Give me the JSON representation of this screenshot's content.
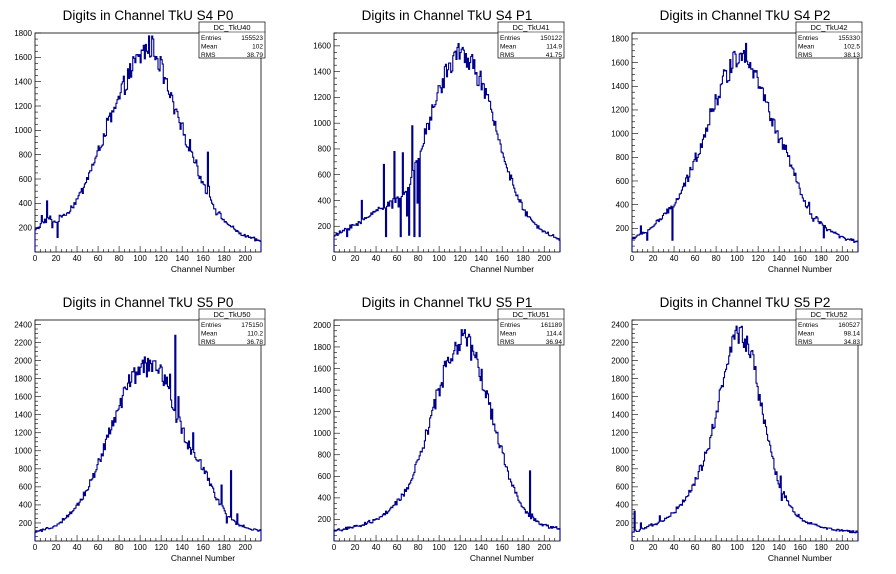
{
  "chart_data": [
    {
      "type": "histogram",
      "title": "Digits in Channel TkU S4 P0",
      "xlabel": "Channel Number",
      "ylabel": "",
      "xlim": [
        0,
        215
      ],
      "ylim": [
        0,
        1800
      ],
      "xticks": [
        0,
        20,
        40,
        60,
        80,
        100,
        120,
        140,
        160,
        180,
        200
      ],
      "yticks": [
        200,
        400,
        600,
        800,
        1000,
        1200,
        1400,
        1600,
        1800
      ],
      "stats": {
        "name": "DC_TkU40",
        "entries": "155523",
        "mean": "102",
        "rms": "38.79"
      },
      "anchors": [
        [
          0,
          180
        ],
        [
          8,
          240
        ],
        [
          14,
          280
        ],
        [
          20,
          240
        ],
        [
          26,
          300
        ],
        [
          32,
          330
        ],
        [
          36,
          380
        ],
        [
          40,
          430
        ],
        [
          46,
          520
        ],
        [
          52,
          660
        ],
        [
          58,
          760
        ],
        [
          64,
          920
        ],
        [
          70,
          1070
        ],
        [
          76,
          1160
        ],
        [
          82,
          1300
        ],
        [
          88,
          1430
        ],
        [
          94,
          1530
        ],
        [
          100,
          1600
        ],
        [
          106,
          1680
        ],
        [
          112,
          1690
        ],
        [
          118,
          1580
        ],
        [
          124,
          1400
        ],
        [
          130,
          1240
        ],
        [
          136,
          1090
        ],
        [
          142,
          960
        ],
        [
          148,
          860
        ],
        [
          154,
          700
        ],
        [
          160,
          560
        ],
        [
          166,
          470
        ],
        [
          172,
          340
        ],
        [
          180,
          260
        ],
        [
          190,
          180
        ],
        [
          200,
          130
        ],
        [
          210,
          100
        ],
        [
          215,
          90
        ]
      ],
      "spikes": [
        [
          6,
          300
        ],
        [
          11,
          420
        ],
        [
          16,
          200
        ],
        [
          21,
          120
        ],
        [
          164,
          820
        ],
        [
          165,
          540
        ]
      ],
      "line_color": "#00008b"
    },
    {
      "type": "histogram",
      "title": "Digits in Channel TkU S4 P1",
      "xlabel": "Channel Number",
      "ylabel": "",
      "xlim": [
        0,
        215
      ],
      "ylim": [
        0,
        1700
      ],
      "xticks": [
        0,
        20,
        40,
        60,
        80,
        100,
        120,
        140,
        160,
        180,
        200
      ],
      "yticks": [
        200,
        400,
        600,
        800,
        1000,
        1200,
        1400,
        1600
      ],
      "stats": {
        "name": "DC_TkU41",
        "entries": "150122",
        "mean": "114.9",
        "rms": "41.75"
      },
      "anchors": [
        [
          0,
          120
        ],
        [
          8,
          160
        ],
        [
          16,
          200
        ],
        [
          24,
          220
        ],
        [
          30,
          260
        ],
        [
          36,
          300
        ],
        [
          42,
          330
        ],
        [
          48,
          360
        ],
        [
          54,
          380
        ],
        [
          60,
          410
        ],
        [
          66,
          460
        ],
        [
          72,
          540
        ],
        [
          78,
          660
        ],
        [
          84,
          820
        ],
        [
          90,
          1000
        ],
        [
          96,
          1150
        ],
        [
          102,
          1300
        ],
        [
          108,
          1420
        ],
        [
          114,
          1500
        ],
        [
          120,
          1540
        ],
        [
          126,
          1520
        ],
        [
          132,
          1450
        ],
        [
          138,
          1360
        ],
        [
          144,
          1230
        ],
        [
          150,
          1070
        ],
        [
          156,
          900
        ],
        [
          162,
          740
        ],
        [
          168,
          580
        ],
        [
          174,
          440
        ],
        [
          180,
          330
        ],
        [
          188,
          240
        ],
        [
          196,
          180
        ],
        [
          206,
          130
        ],
        [
          215,
          90
        ]
      ],
      "spikes": [
        [
          12,
          120
        ],
        [
          26,
          400
        ],
        [
          47,
          680
        ],
        [
          49,
          120
        ],
        [
          55,
          340
        ],
        [
          57,
          780
        ],
        [
          61,
          350
        ],
        [
          63,
          120
        ],
        [
          65,
          770
        ],
        [
          69,
          280
        ],
        [
          71,
          130
        ],
        [
          74,
          980
        ],
        [
          76,
          120
        ],
        [
          79,
          380
        ],
        [
          81,
          120
        ]
      ],
      "line_color": "#00008b"
    },
    {
      "type": "histogram",
      "title": "Digits in Channel TkU S4 P2",
      "xlabel": "Channel Number",
      "ylabel": "",
      "xlim": [
        0,
        215
      ],
      "ylim": [
        0,
        1850
      ],
      "xticks": [
        0,
        20,
        40,
        60,
        80,
        100,
        120,
        140,
        160,
        180,
        200
      ],
      "yticks": [
        200,
        400,
        600,
        800,
        1000,
        1200,
        1400,
        1600,
        1800
      ],
      "stats": {
        "name": "DC_TkU42",
        "entries": "155330",
        "mean": "102.5",
        "rms": "38.13"
      },
      "anchors": [
        [
          0,
          110
        ],
        [
          6,
          140
        ],
        [
          12,
          160
        ],
        [
          18,
          200
        ],
        [
          24,
          260
        ],
        [
          30,
          300
        ],
        [
          36,
          360
        ],
        [
          42,
          420
        ],
        [
          48,
          520
        ],
        [
          54,
          640
        ],
        [
          60,
          780
        ],
        [
          66,
          920
        ],
        [
          72,
          1080
        ],
        [
          78,
          1240
        ],
        [
          84,
          1380
        ],
        [
          90,
          1500
        ],
        [
          96,
          1600
        ],
        [
          102,
          1680
        ],
        [
          106,
          1720
        ],
        [
          110,
          1660
        ],
        [
          116,
          1550
        ],
        [
          122,
          1400
        ],
        [
          128,
          1240
        ],
        [
          134,
          1100
        ],
        [
          140,
          960
        ],
        [
          146,
          860
        ],
        [
          152,
          720
        ],
        [
          158,
          560
        ],
        [
          164,
          420
        ],
        [
          170,
          320
        ],
        [
          178,
          250
        ],
        [
          188,
          180
        ],
        [
          198,
          130
        ],
        [
          208,
          100
        ],
        [
          215,
          90
        ]
      ],
      "spikes": [
        [
          8,
          220
        ],
        [
          14,
          100
        ],
        [
          38,
          100
        ],
        [
          42,
          450
        ],
        [
          168,
          420
        ],
        [
          172,
          260
        ],
        [
          175,
          300
        ],
        [
          178,
          240
        ],
        [
          182,
          120
        ]
      ],
      "line_color": "#00008b"
    },
    {
      "type": "histogram",
      "title": "Digits in Channel TkU S5 P0",
      "xlabel": "Channel Number",
      "ylabel": "",
      "xlim": [
        0,
        215
      ],
      "ylim": [
        0,
        2450
      ],
      "xticks": [
        0,
        20,
        40,
        60,
        80,
        100,
        120,
        140,
        160,
        180,
        200
      ],
      "yticks": [
        200,
        400,
        600,
        800,
        1000,
        1200,
        1400,
        1600,
        1800,
        2000,
        2200,
        2400
      ],
      "stats": {
        "name": "DC_TkU50",
        "entries": "175150",
        "mean": "110.2",
        "rms": "36.78"
      },
      "anchors": [
        [
          0,
          100
        ],
        [
          8,
          120
        ],
        [
          16,
          150
        ],
        [
          24,
          200
        ],
        [
          30,
          260
        ],
        [
          36,
          320
        ],
        [
          42,
          420
        ],
        [
          48,
          540
        ],
        [
          54,
          680
        ],
        [
          60,
          860
        ],
        [
          66,
          1040
        ],
        [
          72,
          1240
        ],
        [
          78,
          1440
        ],
        [
          84,
          1600
        ],
        [
          90,
          1750
        ],
        [
          96,
          1850
        ],
        [
          102,
          1920
        ],
        [
          108,
          1940
        ],
        [
          114,
          1930
        ],
        [
          120,
          1870
        ],
        [
          126,
          1720
        ],
        [
          132,
          1460
        ],
        [
          138,
          1280
        ],
        [
          144,
          1120
        ],
        [
          150,
          960
        ],
        [
          156,
          880
        ],
        [
          162,
          760
        ],
        [
          168,
          600
        ],
        [
          174,
          460
        ],
        [
          180,
          340
        ],
        [
          188,
          220
        ],
        [
          196,
          170
        ],
        [
          206,
          130
        ],
        [
          215,
          110
        ]
      ],
      "spikes": [
        [
          128,
          1850
        ],
        [
          133,
          2280
        ],
        [
          136,
          1600
        ],
        [
          140,
          1250
        ],
        [
          150,
          1200
        ],
        [
          156,
          900
        ],
        [
          177,
          620
        ],
        [
          182,
          200
        ],
        [
          186,
          780
        ],
        [
          192,
          300
        ]
      ],
      "line_color": "#00008b"
    },
    {
      "type": "histogram",
      "title": "Digits in Channel TkU S5 P1",
      "xlabel": "Channel Number",
      "ylabel": "",
      "xlim": [
        0,
        215
      ],
      "ylim": [
        0,
        2050
      ],
      "xticks": [
        0,
        20,
        40,
        60,
        80,
        100,
        120,
        140,
        160,
        180,
        200
      ],
      "yticks": [
        200,
        400,
        600,
        800,
        1000,
        1200,
        1400,
        1600,
        1800,
        2000
      ],
      "stats": {
        "name": "DC_TkU51",
        "entries": "161189",
        "mean": "114.4",
        "rms": "36.94"
      },
      "anchors": [
        [
          0,
          100
        ],
        [
          10,
          110
        ],
        [
          20,
          130
        ],
        [
          28,
          150
        ],
        [
          36,
          180
        ],
        [
          44,
          220
        ],
        [
          50,
          260
        ],
        [
          56,
          310
        ],
        [
          62,
          380
        ],
        [
          68,
          460
        ],
        [
          74,
          580
        ],
        [
          80,
          740
        ],
        [
          86,
          920
        ],
        [
          92,
          1120
        ],
        [
          98,
          1340
        ],
        [
          104,
          1540
        ],
        [
          110,
          1700
        ],
        [
          116,
          1820
        ],
        [
          122,
          1870
        ],
        [
          126,
          1860
        ],
        [
          132,
          1760
        ],
        [
          138,
          1600
        ],
        [
          144,
          1400
        ],
        [
          150,
          1180
        ],
        [
          156,
          960
        ],
        [
          162,
          760
        ],
        [
          168,
          560
        ],
        [
          174,
          420
        ],
        [
          180,
          300
        ],
        [
          188,
          220
        ],
        [
          196,
          160
        ],
        [
          206,
          130
        ],
        [
          215,
          120
        ]
      ],
      "spikes": [
        [
          186,
          650
        ],
        [
          188,
          250
        ]
      ],
      "line_color": "#00008b"
    },
    {
      "type": "histogram",
      "title": "Digits in Channel TkU S5 P2",
      "xlabel": "Channel Number",
      "ylabel": "",
      "xlim": [
        0,
        215
      ],
      "ylim": [
        0,
        2450
      ],
      "xticks": [
        0,
        20,
        40,
        60,
        80,
        100,
        120,
        140,
        160,
        180,
        200
      ],
      "yticks": [
        200,
        400,
        600,
        800,
        1000,
        1200,
        1400,
        1600,
        1800,
        2000,
        2200,
        2400
      ],
      "stats": {
        "name": "DC_TkU52",
        "entries": "160527",
        "mean": "98.14",
        "rms": "34.83"
      },
      "anchors": [
        [
          0,
          100
        ],
        [
          8,
          130
        ],
        [
          16,
          160
        ],
        [
          24,
          190
        ],
        [
          30,
          230
        ],
        [
          36,
          280
        ],
        [
          42,
          340
        ],
        [
          48,
          420
        ],
        [
          54,
          520
        ],
        [
          60,
          660
        ],
        [
          66,
          820
        ],
        [
          72,
          1020
        ],
        [
          78,
          1300
        ],
        [
          84,
          1640
        ],
        [
          90,
          1950
        ],
        [
          96,
          2200
        ],
        [
          100,
          2300
        ],
        [
          104,
          2280
        ],
        [
          110,
          2150
        ],
        [
          116,
          1950
        ],
        [
          120,
          1700
        ],
        [
          126,
          1300
        ],
        [
          132,
          980
        ],
        [
          138,
          700
        ],
        [
          144,
          520
        ],
        [
          150,
          400
        ],
        [
          156,
          300
        ],
        [
          164,
          220
        ],
        [
          172,
          180
        ],
        [
          182,
          150
        ],
        [
          192,
          130
        ],
        [
          204,
          110
        ],
        [
          215,
          100
        ]
      ],
      "spikes": [
        [
          2,
          330
        ],
        [
          8,
          200
        ],
        [
          26,
          280
        ],
        [
          141,
          720
        ],
        [
          142,
          450
        ]
      ],
      "line_color": "#00008b"
    }
  ]
}
